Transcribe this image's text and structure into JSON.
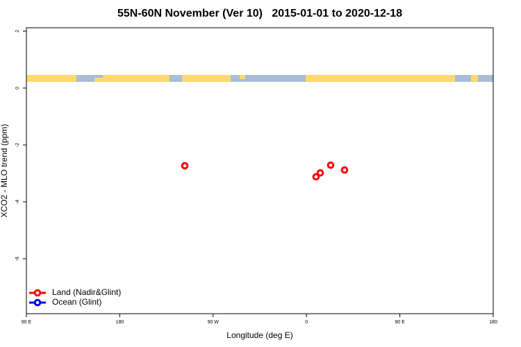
{
  "chart_data": {
    "type": "scatter",
    "title": "55N-60N November (Ver 10)   2015-01-01 to 2020-12-18",
    "x_label": "Longitude (deg E)",
    "y_label": "XCO2 - MLO trend (ppm)",
    "xlim": [
      90,
      540
    ],
    "xticks": [
      {
        "value": 90,
        "label": "90 E"
      },
      180,
      {
        "value": 270,
        "label": "90 W"
      },
      {
        "value": 360,
        "label": "0"
      },
      {
        "value": 450,
        "label": "90 E"
      },
      {
        "value": 540,
        "label": "180"
      }
    ],
    "ylim": [
      -7.93,
      2.12
    ],
    "yticks": [
      2,
      0,
      -2,
      -4,
      -6
    ],
    "legend": "bottom-left",
    "series": [
      {
        "name": "Land (Nadir&Glint)",
        "color": "#ff0000",
        "x": [
          242.7,
          369.2,
          373.3,
          383.3,
          396.7
        ],
        "values": [
          -2.73,
          -3.12,
          -2.98,
          -2.71,
          -2.88
        ]
      },
      {
        "name": "Ocean (Glint)",
        "color": "#0000ff",
        "x": [],
        "values": []
      }
    ]
  }
}
